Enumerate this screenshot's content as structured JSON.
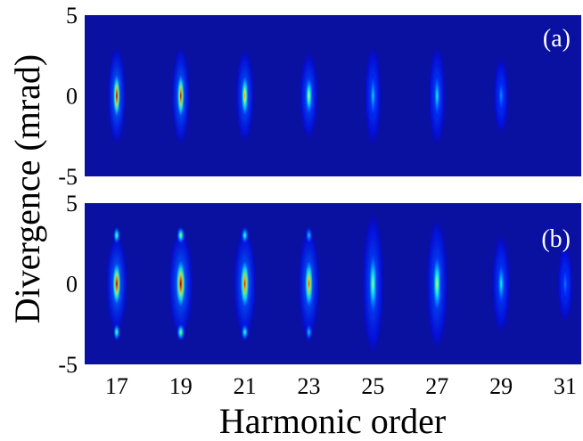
{
  "chart_data": {
    "type": "heatmap",
    "title": "",
    "xlabel": "Harmonic order",
    "ylabel": "Divergence (mrad)",
    "colormap": "jet",
    "background_color": "#0a10a0",
    "xlim": [
      16.0,
      31.5
    ],
    "ylim": [
      -5,
      5
    ],
    "x_ticks": [
      17,
      19,
      21,
      23,
      25,
      27,
      29,
      31
    ],
    "y_ticks": [
      -5,
      0,
      5
    ],
    "panels": [
      {
        "label": "(a)",
        "harmonics": [
          {
            "order": 17,
            "intensity": 1.0,
            "width": 0.12,
            "sigma": 0.9,
            "satellite_offset": 0,
            "satellite_intensity": 0
          },
          {
            "order": 19,
            "intensity": 0.95,
            "width": 0.12,
            "sigma": 0.9,
            "satellite_offset": 0,
            "satellite_intensity": 0
          },
          {
            "order": 21,
            "intensity": 0.75,
            "width": 0.12,
            "sigma": 0.85,
            "satellite_offset": 0,
            "satellite_intensity": 0
          },
          {
            "order": 23,
            "intensity": 0.6,
            "width": 0.12,
            "sigma": 0.8,
            "satellite_offset": 0,
            "satellite_intensity": 0
          },
          {
            "order": 25,
            "intensity": 0.35,
            "width": 0.11,
            "sigma": 0.9,
            "satellite_offset": 0,
            "satellite_intensity": 0
          },
          {
            "order": 27,
            "intensity": 0.4,
            "width": 0.11,
            "sigma": 0.9,
            "satellite_offset": 0,
            "satellite_intensity": 0
          },
          {
            "order": 29,
            "intensity": 0.28,
            "width": 0.1,
            "sigma": 0.7,
            "satellite_offset": 0,
            "satellite_intensity": 0
          }
        ]
      },
      {
        "label": "(b)",
        "harmonics": [
          {
            "order": 17,
            "intensity": 1.0,
            "width": 0.14,
            "sigma": 0.9,
            "satellite_offset": 3.0,
            "satellite_intensity": 0.5
          },
          {
            "order": 19,
            "intensity": 1.0,
            "width": 0.16,
            "sigma": 1.0,
            "satellite_offset": 3.0,
            "satellite_intensity": 0.55
          },
          {
            "order": 21,
            "intensity": 0.9,
            "width": 0.15,
            "sigma": 1.0,
            "satellite_offset": 3.0,
            "satellite_intensity": 0.45
          },
          {
            "order": 23,
            "intensity": 0.85,
            "width": 0.14,
            "sigma": 1.0,
            "satellite_offset": 3.0,
            "satellite_intensity": 0.35
          },
          {
            "order": 25,
            "intensity": 0.55,
            "width": 0.14,
            "sigma": 1.3,
            "satellite_offset": 0,
            "satellite_intensity": 0
          },
          {
            "order": 27,
            "intensity": 0.6,
            "width": 0.14,
            "sigma": 1.2,
            "satellite_offset": 0,
            "satellite_intensity": 0
          },
          {
            "order": 29,
            "intensity": 0.4,
            "width": 0.12,
            "sigma": 0.9,
            "satellite_offset": 0,
            "satellite_intensity": 0
          },
          {
            "order": 31,
            "intensity": 0.25,
            "width": 0.1,
            "sigma": 0.7,
            "satellite_offset": 0,
            "satellite_intensity": 0
          }
        ]
      }
    ]
  }
}
